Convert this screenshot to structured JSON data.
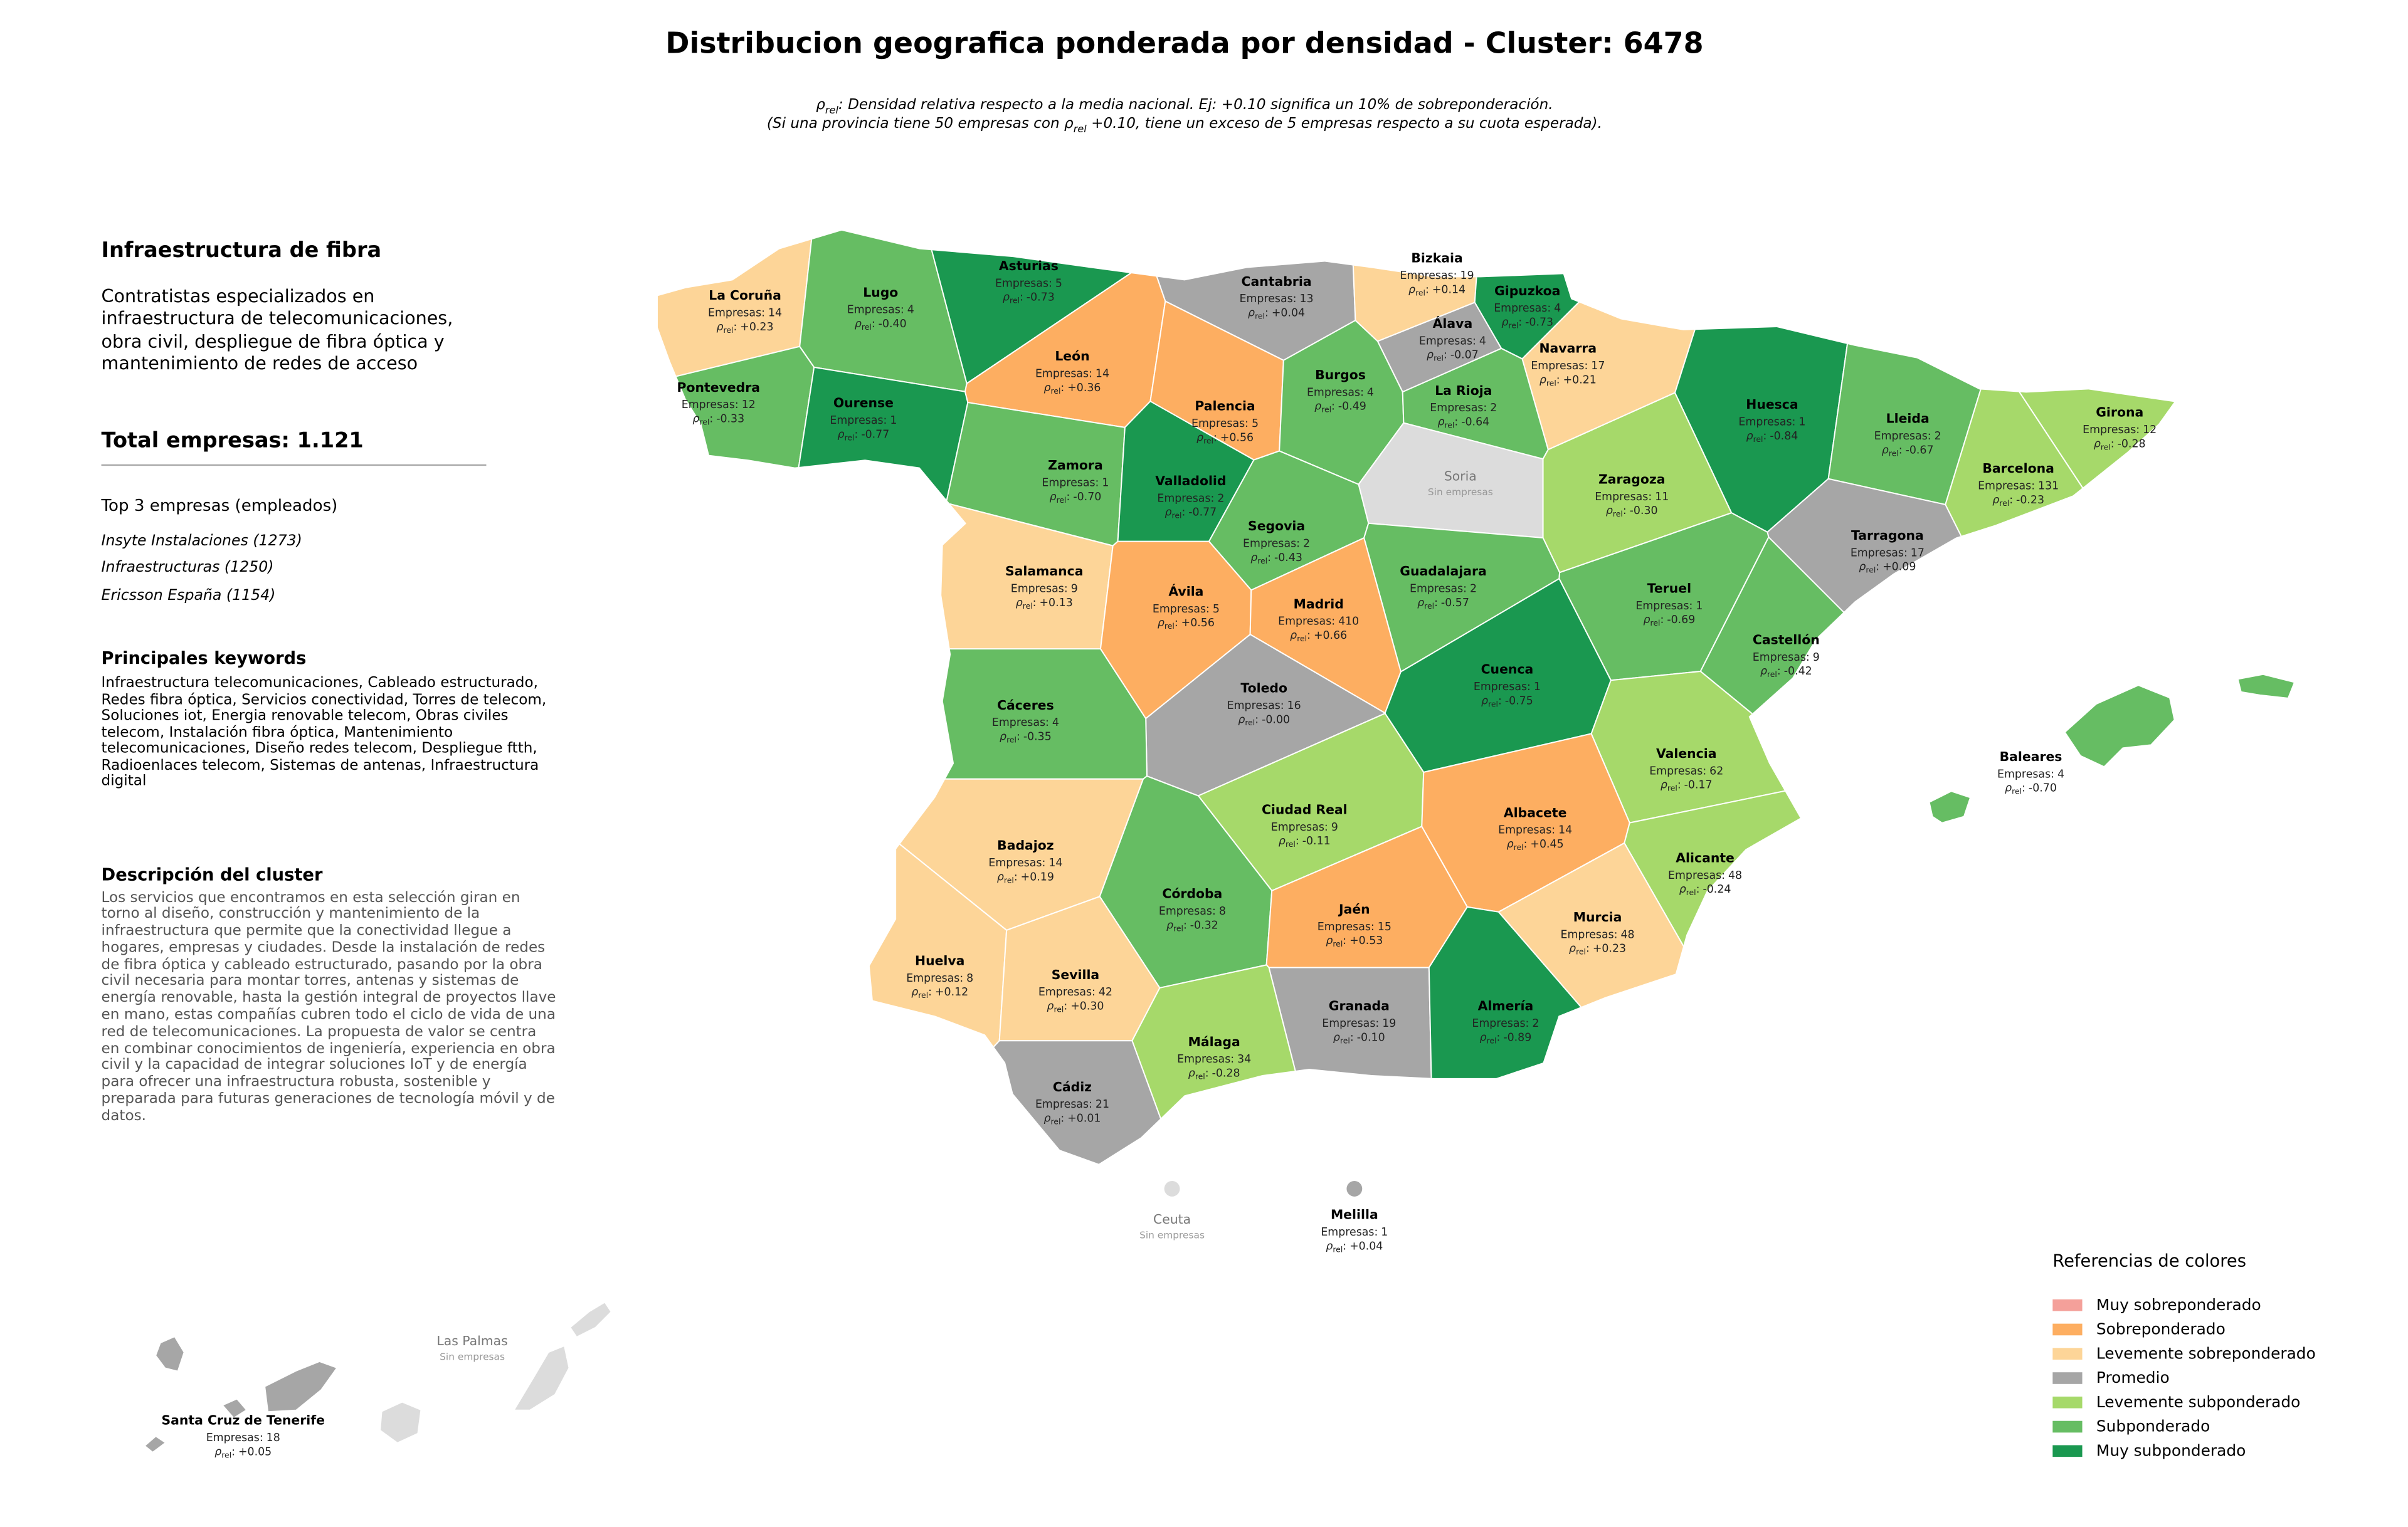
{
  "title": "Distribucion geografica ponderada por densidad - Cluster: 6478",
  "subtitle": [
    [
      "ρ",
      "rel",
      ": Densidad relativa respecto a la media nacional. Ej: +0.10 significa un 10% de sobreponderación."
    ],
    [
      "(Si una provincia tiene 50 empresas con ρ",
      "rel",
      " +0.10, tiene un exceso de 5 empresas respecto a su cuota esperada)."
    ]
  ],
  "panel": {
    "heading": "Infraestructura de fibra",
    "description": "Contratistas especializados en infraestructura de telecomunicaciones, obra civil, despliegue de fibra óptica y mantenimiento de redes de acceso",
    "total": "Total empresas: 1.121",
    "top_title": "Top 3 empresas (empleados)",
    "top": [
      "Insyte Instalaciones (1273)",
      "Infraestructuras (1250)",
      "Ericsson España (1154)"
    ],
    "keywords_title": "Principales keywords",
    "keywords": "Infraestructura telecomunicaciones, Cableado estructurado, Redes fibra óptica, Servicios conectividad, Torres de telecom, Soluciones iot, Energia renovable telecom, Obras civiles telecom, Instalación fibra óptica, Mantenimiento telecomunicaciones, Diseño redes telecom, Despliegue ftth, Radioenlaces telecom, Sistemas de antenas, Infraestructura digital",
    "cluster_title": "Descripción del cluster",
    "cluster_text": "Los servicios que encontramos en esta selección giran en torno al diseño, construcción y mantenimiento de la infraestructura que permite que la conectividad llegue a hogares, empresas y ciudades. Desde la instalación de redes de fibra óptica y cableado estructurado, pasando por la obra civil necesaria para montar torres, antenas y sistemas de energía renovable, hasta la gestión integral de proyectos llave en mano, estas compañías cubren todo el ciclo de vida de una red de telecomunicaciones. La propuesta de valor se centra en combinar conocimientos de ingeniería, experiencia en obra civil y la capacidad de integrar soluciones IoT y de energía para ofrecer una infraestructura robusta, sostenible y preparada para futuras generaciones de tecnología móvil y de datos."
  },
  "map": {
    "empresas_label": "Empresas:",
    "rho_prefix": [
      "ρ",
      "rel",
      ":"
    ],
    "no_data_label": "Sin empresas",
    "no_data_color": "#dcdcdc",
    "provinces": [
      {
        "name": "La Coruña",
        "empresas": 14,
        "rho": "+0.23",
        "color": "#fdd598"
      },
      {
        "name": "Lugo",
        "empresas": 4,
        "rho": "-0.40",
        "color": "#66bd63"
      },
      {
        "name": "Asturias",
        "empresas": 5,
        "rho": "-0.73",
        "color": "#1a9850"
      },
      {
        "name": "Cantabria",
        "empresas": 13,
        "rho": "+0.04",
        "color": "#a6a6a6"
      },
      {
        "name": "Bizkaia",
        "empresas": 19,
        "rho": "+0.14",
        "color": "#fdd598"
      },
      {
        "name": "Gipuzkoa",
        "empresas": 4,
        "rho": "-0.73",
        "color": "#1a9850"
      },
      {
        "name": "Álava",
        "empresas": 4,
        "rho": "-0.07",
        "color": "#a6a6a6"
      },
      {
        "name": "Navarra",
        "empresas": 17,
        "rho": "+0.21",
        "color": "#fdd598"
      },
      {
        "name": "Pontevedra",
        "empresas": 12,
        "rho": "-0.33",
        "color": "#66bd63"
      },
      {
        "name": "Ourense",
        "empresas": 1,
        "rho": "-0.77",
        "color": "#1a9850"
      },
      {
        "name": "León",
        "empresas": 14,
        "rho": "+0.36",
        "color": "#fdae61"
      },
      {
        "name": "Palencia",
        "empresas": 5,
        "rho": "+0.56",
        "color": "#fdae61"
      },
      {
        "name": "Burgos",
        "empresas": 4,
        "rho": "-0.49",
        "color": "#66bd63"
      },
      {
        "name": "La Rioja",
        "empresas": 2,
        "rho": "-0.64",
        "color": "#66bd63"
      },
      {
        "name": "Huesca",
        "empresas": 1,
        "rho": "-0.84",
        "color": "#1a9850"
      },
      {
        "name": "Lleida",
        "empresas": 2,
        "rho": "-0.67",
        "color": "#66bd63"
      },
      {
        "name": "Girona",
        "empresas": 12,
        "rho": "-0.28",
        "color": "#a6d96a"
      },
      {
        "name": "Soria",
        "empresas": null,
        "rho": null,
        "color": null
      },
      {
        "name": "Zamora",
        "empresas": 1,
        "rho": "-0.70",
        "color": "#66bd63"
      },
      {
        "name": "Valladolid",
        "empresas": 2,
        "rho": "-0.77",
        "color": "#1a9850"
      },
      {
        "name": "Zaragoza",
        "empresas": 11,
        "rho": "-0.30",
        "color": "#a6d96a"
      },
      {
        "name": "Barcelona",
        "empresas": 131,
        "rho": "-0.23",
        "color": "#a6d96a"
      },
      {
        "name": "Segovia",
        "empresas": 2,
        "rho": "-0.43",
        "color": "#66bd63"
      },
      {
        "name": "Tarragona",
        "empresas": 17,
        "rho": "+0.09",
        "color": "#a6a6a6"
      },
      {
        "name": "Salamanca",
        "empresas": 9,
        "rho": "+0.13",
        "color": "#fdd598"
      },
      {
        "name": "Guadalajara",
        "empresas": 2,
        "rho": "-0.57",
        "color": "#66bd63"
      },
      {
        "name": "Ávila",
        "empresas": 5,
        "rho": "+0.56",
        "color": "#fdae61"
      },
      {
        "name": "Madrid",
        "empresas": 410,
        "rho": "+0.66",
        "color": "#fdae61"
      },
      {
        "name": "Teruel",
        "empresas": 1,
        "rho": "-0.69",
        "color": "#66bd63"
      },
      {
        "name": "Castellón",
        "empresas": 9,
        "rho": "-0.42",
        "color": "#66bd63"
      },
      {
        "name": "Cuenca",
        "empresas": 1,
        "rho": "-0.75",
        "color": "#1a9850"
      },
      {
        "name": "Toledo",
        "empresas": 16,
        "rho": "-0.00",
        "color": "#a6a6a6"
      },
      {
        "name": "Cáceres",
        "empresas": 4,
        "rho": "-0.35",
        "color": "#66bd63"
      },
      {
        "name": "Valencia",
        "empresas": 62,
        "rho": "-0.17",
        "color": "#a6d96a"
      },
      {
        "name": "Ciudad Real",
        "empresas": 9,
        "rho": "-0.11",
        "color": "#a6d96a"
      },
      {
        "name": "Albacete",
        "empresas": 14,
        "rho": "+0.45",
        "color": "#fdae61"
      },
      {
        "name": "Badajoz",
        "empresas": 14,
        "rho": "+0.19",
        "color": "#fdd598"
      },
      {
        "name": "Alicante",
        "empresas": 48,
        "rho": "-0.24",
        "color": "#a6d96a"
      },
      {
        "name": "Córdoba",
        "empresas": 8,
        "rho": "-0.32",
        "color": "#66bd63"
      },
      {
        "name": "Jaén",
        "empresas": 15,
        "rho": "+0.53",
        "color": "#fdae61"
      },
      {
        "name": "Murcia",
        "empresas": 48,
        "rho": "+0.23",
        "color": "#fdd598"
      },
      {
        "name": "Huelva",
        "empresas": 8,
        "rho": "+0.12",
        "color": "#fdd598"
      },
      {
        "name": "Sevilla",
        "empresas": 42,
        "rho": "+0.30",
        "color": "#fdd598"
      },
      {
        "name": "Granada",
        "empresas": 19,
        "rho": "-0.10",
        "color": "#a6a6a6"
      },
      {
        "name": "Almería",
        "empresas": 2,
        "rho": "-0.89",
        "color": "#1a9850"
      },
      {
        "name": "Málaga",
        "empresas": 34,
        "rho": "-0.28",
        "color": "#a6d96a"
      },
      {
        "name": "Cádiz",
        "empresas": 21,
        "rho": "+0.01",
        "color": "#a6a6a6"
      },
      {
        "name": "Baleares",
        "empresas": 4,
        "rho": "-0.70",
        "color": "#66bd63"
      },
      {
        "name": "Ceuta",
        "empresas": null,
        "rho": null,
        "color": null
      },
      {
        "name": "Melilla",
        "empresas": 1,
        "rho": "+0.04",
        "color": "#a6a6a6"
      },
      {
        "name": "Las Palmas",
        "empresas": null,
        "rho": null,
        "color": null
      },
      {
        "name": "Santa Cruz de Tenerife",
        "empresas": 18,
        "rho": "+0.05",
        "color": "#a6a6a6"
      }
    ]
  },
  "legend": {
    "title": "Referencias de colores",
    "items": [
      {
        "name": "Muy sobreponderado",
        "color": "#f4a09a"
      },
      {
        "name": "Sobreponderado",
        "color": "#fdae61"
      },
      {
        "name": "Levemente sobreponderado",
        "color": "#fdd598"
      },
      {
        "name": "Promedio",
        "color": "#a6a6a6"
      },
      {
        "name": "Levemente subponderado",
        "color": "#a6d96a"
      },
      {
        "name": "Subponderado",
        "color": "#66bd63"
      },
      {
        "name": "Muy subponderado",
        "color": "#1a9850"
      }
    ]
  }
}
